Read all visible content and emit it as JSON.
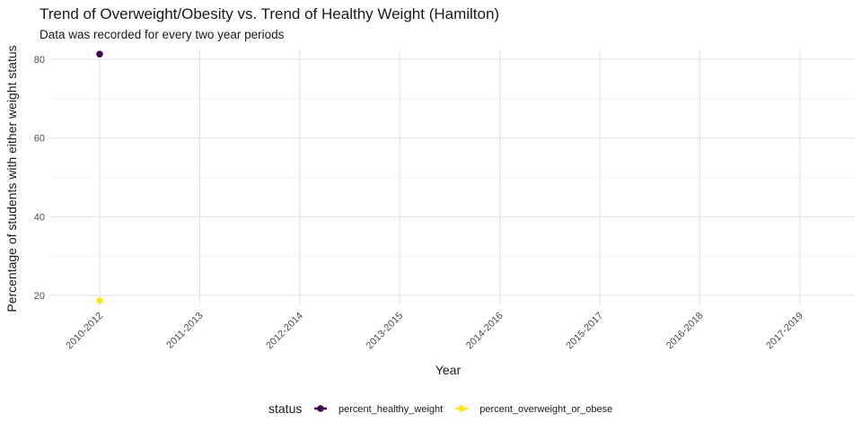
{
  "chart_data": {
    "type": "line",
    "title": "Trend of Overweight/Obesity vs. Trend of Healthy Weight (Hamilton)",
    "subtitle": "Data was recorded for every two year periods",
    "xlabel": "Year",
    "ylabel": "Percentage of students with either weight status",
    "categories": [
      "2010-2012",
      "2011-2013",
      "2012-2014",
      "2013-2015",
      "2014-2016",
      "2015-2017",
      "2016-2018",
      "2017-2019"
    ],
    "yticks": [
      20,
      40,
      60,
      80
    ],
    "ylim": [
      17.5,
      82.5
    ],
    "grid": true,
    "legend": {
      "title": "status",
      "position": "bottom"
    },
    "series": [
      {
        "name": "percent_healthy_weight",
        "color": "#440154",
        "values": [
          81.3,
          null,
          null,
          null,
          null,
          null,
          null,
          null
        ]
      },
      {
        "name": "percent_overweight_or_obese",
        "color": "#FDE725",
        "values": [
          18.7,
          null,
          null,
          null,
          null,
          null,
          null,
          null
        ]
      }
    ]
  }
}
